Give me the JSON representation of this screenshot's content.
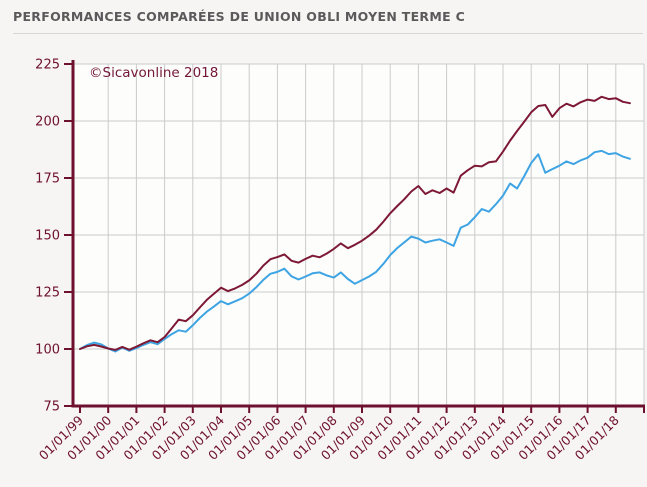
{
  "header": {
    "title": "PERFORMANCES COMPARÉES DE UNION OBLI MOYEN TERME C"
  },
  "colors": {
    "title": "#5A5A5C",
    "separator": "#D8D5D2",
    "axis": "#6E1030",
    "grid": "#CBCBCB",
    "watermark": "#73173A",
    "page_bg": "#F7F5F3",
    "plot_bg": "#FDFDFC",
    "series_dark_red": "#7D1935",
    "series_blue": "#3EA4E3"
  },
  "chart_data": {
    "type": "line",
    "title": "PERFORMANCES COMPARÉES DE UNION OBLI MOYEN TERME C",
    "annotation": "©Sicavonline 2018",
    "xlabel": "",
    "ylabel": "",
    "grid": true,
    "legend": "none",
    "ylim": [
      75,
      225
    ],
    "y_ticks": [
      75,
      100,
      125,
      150,
      175,
      200,
      225
    ],
    "x_start_year": 1999,
    "x_step_years": 0.25,
    "x_tick_labels": [
      "01/01/99",
      "01/01/00",
      "01/01/01",
      "01/01/02",
      "01/01/03",
      "01/01/04",
      "01/01/05",
      "01/01/06",
      "01/01/07",
      "01/01/08",
      "01/01/09",
      "01/01/10",
      "01/01/11",
      "01/01/12",
      "01/01/13",
      "01/01/14",
      "01/01/15",
      "01/01/16",
      "01/01/17",
      "01/01/18"
    ],
    "series": [
      {
        "name": "dark_red_line",
        "color": "#7D1935",
        "values": [
          100.0,
          101.2,
          101.8,
          101.1,
          100.2,
          99.6,
          100.9,
          99.7,
          101.0,
          102.5,
          103.8,
          103.0,
          105.2,
          109.0,
          112.9,
          112.2,
          114.8,
          118.2,
          121.6,
          124.2,
          126.9,
          125.4,
          126.6,
          128.1,
          130.1,
          133.0,
          136.6,
          139.4,
          140.3,
          141.5,
          138.7,
          137.9,
          139.5,
          140.9,
          140.2,
          141.9,
          143.9,
          146.3,
          144.2,
          145.7,
          147.5,
          149.7,
          152.3,
          155.7,
          159.5,
          162.7,
          165.7,
          169.1,
          171.5,
          168.0,
          169.6,
          168.4,
          170.4,
          168.6,
          176.0,
          178.4,
          180.4,
          180.1,
          181.9,
          182.3,
          186.6,
          191.4,
          195.6,
          199.6,
          203.8,
          206.6,
          207.0,
          201.8,
          205.6,
          207.6,
          206.4,
          208.2,
          209.4,
          208.8,
          210.6,
          209.6,
          210.0,
          208.4,
          207.8
        ]
      },
      {
        "name": "blue_line",
        "color": "#3EA4E3",
        "values": [
          100.0,
          101.7,
          102.8,
          102.0,
          100.2,
          98.9,
          100.6,
          99.2,
          100.4,
          101.8,
          103.0,
          102.1,
          104.4,
          106.5,
          108.2,
          107.6,
          110.4,
          113.6,
          116.4,
          118.6,
          121.0,
          119.6,
          120.9,
          122.3,
          124.3,
          127.1,
          130.3,
          133.0,
          133.8,
          135.2,
          131.9,
          130.5,
          131.8,
          133.2,
          133.6,
          132.3,
          131.3,
          133.6,
          130.7,
          128.6,
          130.2,
          131.8,
          133.8,
          137.2,
          141.2,
          144.3,
          146.8,
          149.3,
          148.4,
          146.7,
          147.5,
          148.1,
          146.7,
          145.2,
          153.2,
          154.6,
          157.8,
          161.4,
          160.2,
          163.5,
          167.3,
          172.6,
          170.4,
          175.7,
          181.6,
          185.4,
          177.3,
          178.9,
          180.4,
          182.3,
          181.1,
          182.7,
          183.9,
          186.3,
          186.9,
          185.5,
          185.9,
          184.4,
          183.4
        ]
      }
    ]
  }
}
